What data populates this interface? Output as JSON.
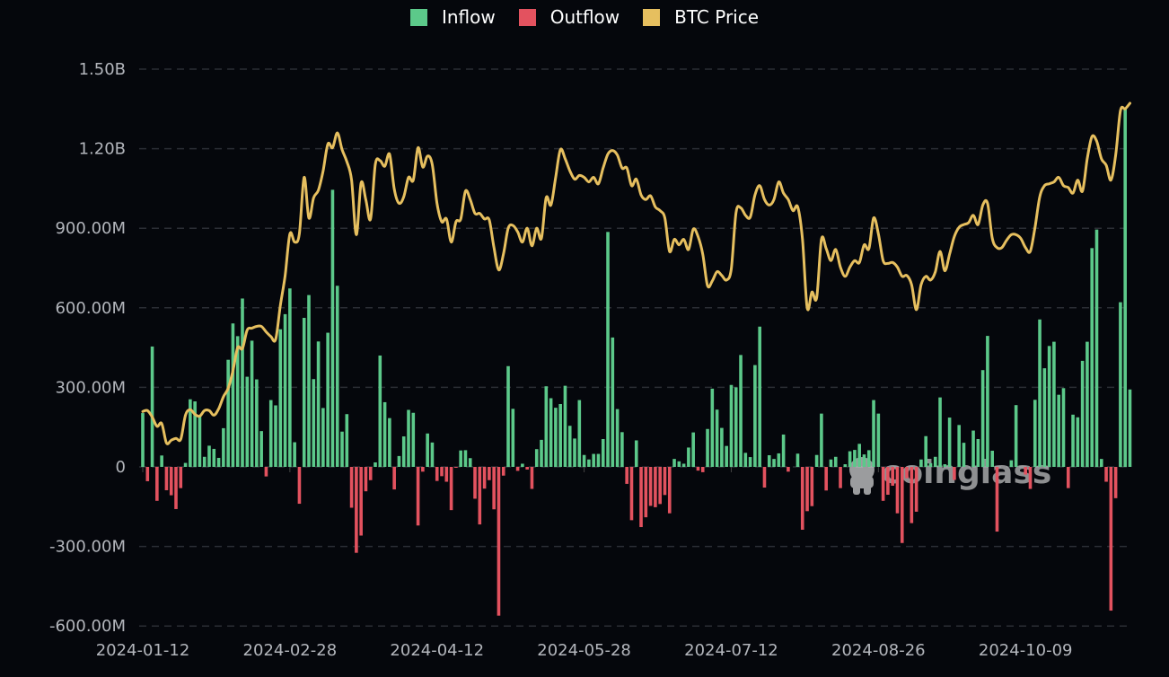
{
  "colors": {
    "background": "#05070c",
    "inflow": "#5cc98a",
    "outflow": "#e3525f",
    "price": "#e6bf5f",
    "grid": "#2b2e35",
    "tick_text": "#b3b6bc"
  },
  "watermark": "coinglass",
  "chart_data": {
    "type": "bar+line",
    "title": "",
    "legend": {
      "position": "top-center",
      "entries": [
        "Inflow",
        "Outflow",
        "BTC Price"
      ]
    },
    "grid": true,
    "ylim": [
      -600000000,
      1500000000
    ],
    "y_tick_labels": [
      "-600.00M",
      "-300.00M",
      "0",
      "300.00M",
      "600.00M",
      "900.00M",
      "1.20B",
      "1.50B"
    ],
    "y_tick_values": [
      -600,
      -300,
      0,
      300,
      600,
      900,
      1200,
      1500
    ],
    "x_tick_labels": [
      "2024-01-12",
      "2024-02-28",
      "2024-04-12",
      "2024-05-28",
      "2024-07-12",
      "2024-08-26",
      "2024-10-09"
    ],
    "x_tick_bar_index": [
      0,
      31,
      62,
      93,
      124,
      155,
      186
    ],
    "flow_unit": "M USD",
    "net_flow_millions": [
      203,
      -54,
      454,
      -128,
      43,
      -88,
      -107,
      -159,
      -80,
      15,
      255,
      247,
      194,
      38,
      80,
      68,
      34,
      146,
      404,
      541,
      493,
      635,
      340,
      476,
      330,
      135,
      -36,
      252,
      232,
      519,
      576,
      673,
      93,
      -139,
      562,
      648,
      331,
      473,
      222,
      506,
      1045,
      683,
      133,
      199,
      -154,
      -324,
      -259,
      -92,
      -50,
      17,
      420,
      244,
      184,
      -85,
      41,
      115,
      215,
      204,
      -221,
      -18,
      126,
      92,
      -53,
      -35,
      -56,
      -163,
      -3,
      62,
      63,
      33,
      -120,
      -217,
      -82,
      -50,
      -160,
      -561,
      -33,
      380,
      219,
      -15,
      12,
      -10,
      -83,
      67,
      102,
      304,
      259,
      223,
      237,
      306,
      155,
      107,
      252,
      45,
      28,
      49,
      49,
      105,
      886,
      488,
      218,
      131,
      -64,
      -201,
      100,
      -227,
      -190,
      -147,
      -152,
      -140,
      -106,
      -175,
      30,
      21,
      12,
      73,
      130,
      -14,
      -20,
      143,
      295,
      216,
      147,
      79,
      309,
      300,
      422,
      53,
      37,
      384,
      529,
      -78,
      44,
      30,
      51,
      122,
      -18,
      0,
      50,
      -237,
      -167,
      -148,
      45,
      201,
      -89,
      28,
      38,
      -80,
      10,
      59,
      64,
      87,
      47,
      63,
      252,
      201,
      -128,
      -105,
      -71,
      -175,
      -287,
      -43,
      -212,
      -169,
      28,
      116,
      14,
      38,
      262,
      10,
      186,
      -49,
      158,
      91,
      0,
      137,
      105,
      365,
      494,
      61,
      -244,
      0,
      0,
      25,
      233,
      0,
      -29,
      -83,
      253,
      556,
      372,
      456,
      472,
      272,
      297,
      -80,
      197,
      187,
      400,
      472,
      825,
      895,
      30,
      -56,
      -542,
      -118,
      621,
      1349,
      292
    ],
    "btc_price_thousands_usd": [
      43.0,
      43.1,
      42.4,
      41.4,
      41.7,
      39.6,
      39.9,
      40.1,
      40.0,
      42.6,
      43.2,
      42.7,
      42.5,
      43.1,
      43.1,
      42.6,
      43.3,
      44.6,
      45.5,
      47.4,
      49.9,
      49.8,
      51.8,
      52.0,
      52.2,
      52.2,
      51.6,
      51.1,
      50.8,
      54.5,
      57.7,
      62.2,
      61.3,
      62.2,
      68.3,
      63.9,
      66.1,
      66.9,
      69.0,
      71.9,
      71.5,
      73.1,
      71.3,
      70.0,
      68.0,
      62.1,
      67.7,
      65.9,
      63.8,
      69.7,
      70.1,
      69.5,
      70.8,
      67.0,
      65.5,
      66.2,
      68.3,
      68.0,
      71.5,
      69.4,
      70.6,
      69.7,
      65.5,
      63.5,
      63.8,
      61.3,
      63.5,
      63.8,
      66.8,
      65.9,
      64.4,
      64.4,
      63.8,
      63.7,
      60.7,
      58.3,
      60.0,
      62.8,
      63.1,
      62.4,
      61.3,
      62.8,
      60.9,
      62.8,
      61.7,
      66.1,
      65.3,
      68.3,
      71.3,
      70.3,
      69.0,
      68.1,
      68.5,
      68.3,
      67.8,
      68.3,
      67.6,
      69.3,
      70.8,
      71.2,
      70.7,
      69.3,
      69.3,
      67.4,
      68.1,
      66.4,
      65.9,
      66.3,
      65.1,
      64.7,
      63.9,
      60.3,
      61.6,
      61.0,
      61.6,
      60.5,
      62.7,
      61.9,
      60.0,
      56.6,
      57.1,
      58.1,
      57.7,
      57.2,
      58.4,
      64.5,
      65.0,
      64.2,
      64.0,
      66.4,
      67.4,
      65.9,
      65.3,
      65.9,
      67.8,
      66.6,
      65.9,
      64.7,
      65.1,
      61.6,
      54.2,
      55.9,
      55.3,
      61.6,
      60.6,
      59.3,
      60.5,
      58.6,
      57.6,
      58.6,
      59.3,
      59.1,
      61.0,
      60.6,
      63.9,
      62.2,
      59.3,
      59.0,
      59.1,
      58.6,
      57.6,
      57.7,
      56.7,
      54.0,
      56.7,
      57.6,
      57.2,
      58.1,
      60.3,
      58.2,
      60.0,
      61.9,
      62.9,
      63.2,
      63.4,
      64.2,
      63.2,
      65.3,
      65.5,
      61.7,
      60.7,
      60.7,
      61.5,
      62.1,
      62.1,
      61.7,
      60.7,
      60.3,
      62.9,
      66.2,
      67.4,
      67.6,
      67.8,
      68.3,
      67.4,
      67.2,
      66.6,
      68.0,
      66.8,
      70.3,
      72.7,
      72.2,
      70.3,
      69.6,
      68.0,
      70.7,
      75.5,
      75.7,
      76.3
    ]
  }
}
